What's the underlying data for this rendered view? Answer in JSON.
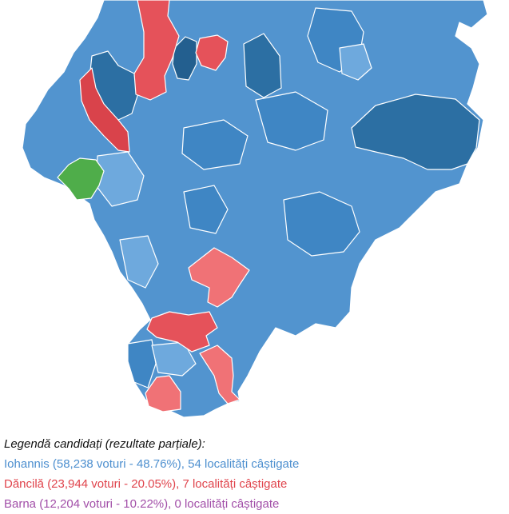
{
  "colors": {
    "win_iohannis": "#5294cf",
    "win_iohannis_mid": "#3f86c4",
    "win_iohannis_dark": "#2c6fa3",
    "win_iohannis_light": "#6ea9dd",
    "win_dancila": "#e5525a",
    "win_dancila_light": "#f07276",
    "win_barna": "#4fad4a",
    "border": "#ffffff"
  },
  "legend": {
    "title": "Legendă candidați (rezultate parțiale):",
    "items": [
      {
        "text": "Iohannis (58,238 voturi - 48.76%), 54 localități câștigate",
        "color": "#4d8fcf"
      },
      {
        "text": "Dăncilă (23,944 voturi - 20.05%), 7 localități câștigate",
        "color": "#e0444c"
      },
      {
        "text": "Barna (12,204 voturi - 10.22%), 0 localități câștigate",
        "color": "#a24fa8"
      }
    ]
  }
}
